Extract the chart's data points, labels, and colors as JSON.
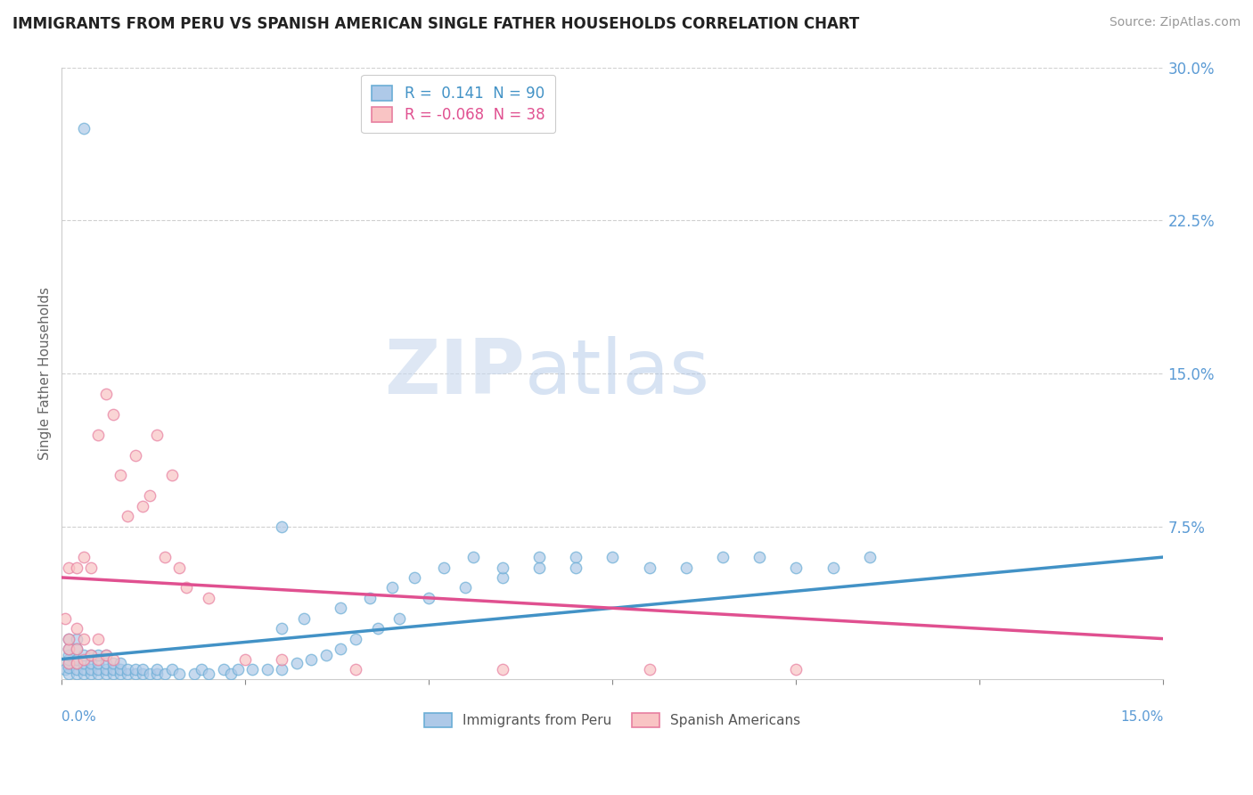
{
  "title": "IMMIGRANTS FROM PERU VS SPANISH AMERICAN SINGLE FATHER HOUSEHOLDS CORRELATION CHART",
  "source": "Source: ZipAtlas.com",
  "ylabel_label": "Single Father Households",
  "right_yticks": [
    0.0,
    0.075,
    0.15,
    0.225,
    0.3
  ],
  "right_ytick_labels": [
    "",
    "7.5%",
    "15.0%",
    "22.5%",
    "30.0%"
  ],
  "xlim": [
    0.0,
    0.15
  ],
  "ylim": [
    0.0,
    0.3
  ],
  "legend_r1": "R =  0.141",
  "legend_n1": "N = 90",
  "legend_r2": "R = -0.068",
  "legend_n2": "N = 38",
  "blue_fill": "#aec9e8",
  "blue_edge": "#6baed6",
  "pink_fill": "#f9c4c4",
  "pink_edge": "#e87fa0",
  "blue_trend_color": "#4292c6",
  "pink_trend_color": "#e05090",
  "right_tick_color": "#5b9bd5",
  "watermark_zip": "ZIP",
  "watermark_atlas": "atlas",
  "blue_scatter_x": [
    0.0005,
    0.001,
    0.001,
    0.001,
    0.001,
    0.001,
    0.001,
    0.001,
    0.002,
    0.002,
    0.002,
    0.002,
    0.002,
    0.002,
    0.003,
    0.003,
    0.003,
    0.003,
    0.003,
    0.004,
    0.004,
    0.004,
    0.004,
    0.005,
    0.005,
    0.005,
    0.005,
    0.006,
    0.006,
    0.006,
    0.006,
    0.007,
    0.007,
    0.007,
    0.008,
    0.008,
    0.008,
    0.009,
    0.009,
    0.01,
    0.01,
    0.011,
    0.011,
    0.012,
    0.013,
    0.013,
    0.014,
    0.015,
    0.016,
    0.018,
    0.019,
    0.02,
    0.022,
    0.023,
    0.024,
    0.026,
    0.028,
    0.03,
    0.032,
    0.034,
    0.036,
    0.038,
    0.04,
    0.043,
    0.046,
    0.05,
    0.055,
    0.06,
    0.065,
    0.07,
    0.03,
    0.033,
    0.038,
    0.042,
    0.045,
    0.048,
    0.052,
    0.056,
    0.06,
    0.065,
    0.07,
    0.075,
    0.08,
    0.085,
    0.09,
    0.095,
    0.1,
    0.105,
    0.11,
    0.03
  ],
  "blue_scatter_y": [
    0.005,
    0.003,
    0.006,
    0.008,
    0.01,
    0.012,
    0.015,
    0.02,
    0.003,
    0.005,
    0.008,
    0.01,
    0.015,
    0.02,
    0.003,
    0.005,
    0.008,
    0.012,
    0.27,
    0.003,
    0.005,
    0.008,
    0.012,
    0.003,
    0.005,
    0.008,
    0.012,
    0.003,
    0.005,
    0.008,
    0.012,
    0.003,
    0.005,
    0.008,
    0.003,
    0.005,
    0.008,
    0.003,
    0.005,
    0.003,
    0.005,
    0.003,
    0.005,
    0.003,
    0.003,
    0.005,
    0.003,
    0.005,
    0.003,
    0.003,
    0.005,
    0.003,
    0.005,
    0.003,
    0.005,
    0.005,
    0.005,
    0.005,
    0.008,
    0.01,
    0.012,
    0.015,
    0.02,
    0.025,
    0.03,
    0.04,
    0.045,
    0.05,
    0.055,
    0.06,
    0.025,
    0.03,
    0.035,
    0.04,
    0.045,
    0.05,
    0.055,
    0.06,
    0.055,
    0.06,
    0.055,
    0.06,
    0.055,
    0.055,
    0.06,
    0.06,
    0.055,
    0.055,
    0.06,
    0.075
  ],
  "pink_scatter_x": [
    0.0005,
    0.001,
    0.001,
    0.001,
    0.001,
    0.002,
    0.002,
    0.002,
    0.002,
    0.003,
    0.003,
    0.003,
    0.004,
    0.004,
    0.005,
    0.005,
    0.005,
    0.006,
    0.006,
    0.007,
    0.007,
    0.008,
    0.009,
    0.01,
    0.011,
    0.012,
    0.013,
    0.014,
    0.015,
    0.016,
    0.017,
    0.02,
    0.025,
    0.03,
    0.04,
    0.06,
    0.08,
    0.1
  ],
  "pink_scatter_y": [
    0.03,
    0.008,
    0.015,
    0.02,
    0.055,
    0.008,
    0.015,
    0.025,
    0.055,
    0.01,
    0.02,
    0.06,
    0.012,
    0.055,
    0.01,
    0.02,
    0.12,
    0.012,
    0.14,
    0.01,
    0.13,
    0.1,
    0.08,
    0.11,
    0.085,
    0.09,
    0.12,
    0.06,
    0.1,
    0.055,
    0.045,
    0.04,
    0.01,
    0.01,
    0.005,
    0.005,
    0.005,
    0.005
  ],
  "blue_trend_x": [
    0.0,
    0.15
  ],
  "blue_trend_y": [
    0.01,
    0.06
  ],
  "pink_trend_x": [
    0.0,
    0.15
  ],
  "pink_trend_y": [
    0.05,
    0.02
  ],
  "grid_color": "#d0d0d0",
  "background_color": "#ffffff"
}
